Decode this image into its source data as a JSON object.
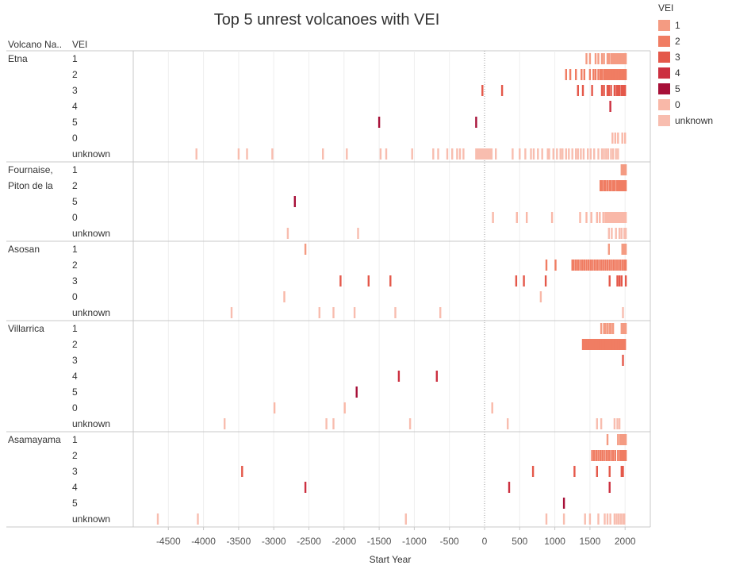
{
  "chart_data": {
    "type": "gantt",
    "title": "Top 5 unrest  volcanoes with VEI",
    "xlabel": "Start Year",
    "xlim": [
      -5000,
      2400
    ],
    "xticks": [
      -4500,
      -4000,
      -3500,
      -3000,
      -2500,
      -2000,
      -1500,
      -1000,
      -500,
      0,
      500,
      1000,
      1500,
      2000
    ],
    "column_headers": {
      "volcano": "Volcano Na..",
      "vei": "VEI"
    },
    "legend": {
      "title": "VEI",
      "position": "top-right",
      "items": [
        {
          "label": "1",
          "color": "#f49b82"
        },
        {
          "label": "2",
          "color": "#f07d63"
        },
        {
          "label": "3",
          "color": "#e4584a"
        },
        {
          "label": "4",
          "color": "#cc3040"
        },
        {
          "label": "5",
          "color": "#a71038"
        },
        {
          "label": "0",
          "color": "#f9b8a8"
        },
        {
          "label": "unknown",
          "color": "#f8bdaf"
        }
      ]
    },
    "volcanoes": [
      {
        "name": "Etna",
        "rows": [
          {
            "vei": "1",
            "events": [
              1450,
              1500,
              1580,
              1620,
              1670,
              1700,
              1750,
              1770,
              1800,
              1810,
              1820,
              1830,
              1840,
              1850,
              1860,
              1870,
              1880,
              1890,
              1900,
              1910,
              1920,
              1930,
              1940,
              1950,
              1960,
              1970,
              1980,
              1990,
              2000,
              2010
            ]
          },
          {
            "vei": "2",
            "events": [
              1160,
              1220,
              1300,
              1380,
              1420,
              1500,
              1550,
              1580,
              1620,
              1650,
              1670,
              1700,
              1720,
              1740,
              1760,
              1780,
              1790,
              1800,
              1810,
              1820,
              1830,
              1840,
              1850,
              1860,
              1870,
              1880,
              1890,
              1900,
              1910,
              1920,
              1930,
              1940,
              1950,
              1960,
              1970,
              1980,
              1990,
              2000,
              2010
            ]
          },
          {
            "vei": "3",
            "events": [
              -30,
              250,
              1330,
              1400,
              1530,
              1670,
              1700,
              1750,
              1770,
              1800,
              1850,
              1880,
              1900,
              1920,
              1950,
              1970,
              1990,
              2000
            ]
          },
          {
            "vei": "4",
            "events": [
              1790
            ]
          },
          {
            "vei": "5",
            "events": [
              -1500,
              -120
            ]
          },
          {
            "vei": "0",
            "events": [
              1820,
              1860,
              1900,
              1960,
              2000
            ]
          },
          {
            "vei": "unknown",
            "events": [
              -4100,
              -3500,
              -3380,
              -3020,
              -2300,
              -1960,
              -1480,
              -1400,
              -1030,
              -730,
              -660,
              -530,
              -460,
              -390,
              -350,
              -300,
              -120,
              -100,
              -80,
              -60,
              -40,
              -20,
              0,
              20,
              40,
              60,
              80,
              100,
              160,
              400,
              500,
              580,
              660,
              700,
              760,
              820,
              900,
              920,
              980,
              1030,
              1080,
              1110,
              1160,
              1200,
              1250,
              1300,
              1330,
              1370,
              1410,
              1470,
              1510,
              1560,
              1620,
              1670,
              1700,
              1730,
              1760,
              1800,
              1830,
              1870,
              1900
            ]
          }
        ]
      },
      {
        "name": "Fournaise, Piton de la",
        "rows": [
          {
            "vei": "1",
            "events": [
              1950,
              1960,
              1970,
              1980,
              1990,
              2000,
              2010
            ]
          },
          {
            "vei": "2",
            "events": [
              1650,
              1670,
              1700,
              1720,
              1750,
              1780,
              1800,
              1830,
              1850,
              1880,
              1900,
              1920,
              1940,
              1960,
              1980,
              2000,
              2010
            ]
          },
          {
            "vei": "5",
            "events": [
              -2700
            ]
          },
          {
            "vei": "0",
            "events": [
              120,
              460,
              600,
              960,
              1360,
              1450,
              1520,
              1600,
              1640,
              1690,
              1720,
              1740,
              1760,
              1780,
              1800,
              1820,
              1840,
              1860,
              1880,
              1900,
              1920,
              1940,
              1960,
              1980,
              2000,
              2010
            ]
          },
          {
            "vei": "unknown",
            "events": [
              -2800,
              -1800,
              1770,
              1810,
              1870,
              1920,
              1950,
              1990,
              2010
            ]
          }
        ]
      },
      {
        "name": "Asosan",
        "rows": [
          {
            "vei": "1",
            "events": [
              -2550,
              1770,
              1960,
              1980,
              2000,
              2010
            ]
          },
          {
            "vei": "2",
            "events": [
              880,
              1010,
              1250,
              1270,
              1300,
              1330,
              1360,
              1390,
              1420,
              1450,
              1480,
              1510,
              1540,
              1570,
              1600,
              1630,
              1660,
              1690,
              1720,
              1750,
              1780,
              1810,
              1840,
              1870,
              1900,
              1930,
              1960,
              1990,
              2010
            ]
          },
          {
            "vei": "3",
            "events": [
              -2050,
              -1650,
              -1340,
              450,
              560,
              870,
              1780,
              1890,
              1920,
              1950,
              2010
            ]
          },
          {
            "vei": "0",
            "events": [
              -2850,
              800
            ]
          },
          {
            "vei": "unknown",
            "events": [
              -3600,
              -2350,
              -2150,
              -1850,
              -1270,
              -630,
              1970
            ]
          }
        ]
      },
      {
        "name": "Villarrica",
        "rows": [
          {
            "vei": "1",
            "events": [
              1660,
              1700,
              1720,
              1750,
              1780,
              1800,
              1830,
              1950,
              1970,
              1990,
              2010
            ]
          },
          {
            "vei": "2",
            "events": [
              1400,
              1420,
              1440,
              1460,
              1480,
              1500,
              1520,
              1540,
              1560,
              1580,
              1600,
              1620,
              1640,
              1660,
              1680,
              1700,
              1720,
              1740,
              1760,
              1780,
              1800,
              1820,
              1840,
              1860,
              1880,
              1900,
              1920,
              1940,
              1960,
              1980,
              2000
            ]
          },
          {
            "vei": "3",
            "events": [
              1970
            ]
          },
          {
            "vei": "4",
            "events": [
              -1220,
              -680
            ]
          },
          {
            "vei": "5",
            "events": [
              -1820
            ]
          },
          {
            "vei": "0",
            "events": [
              -2990,
              -1990,
              110
            ]
          },
          {
            "vei": "unknown",
            "events": [
              -3700,
              -2250,
              -2150,
              -1060,
              330,
              1600,
              1660,
              1850,
              1890,
              1920
            ]
          }
        ]
      },
      {
        "name": "Asamayama",
        "rows": [
          {
            "vei": "1",
            "events": [
              1750,
              1900,
              1930,
              1950,
              1970,
              1990,
              2010
            ]
          },
          {
            "vei": "2",
            "events": [
              1530,
              1560,
              1590,
              1620,
              1650,
              1680,
              1710,
              1740,
              1770,
              1800,
              1830,
              1860,
              1900,
              1930,
              1950,
              1970,
              1990,
              2010
            ]
          },
          {
            "vei": "3",
            "events": [
              -3450,
              690,
              1280,
              1600,
              1780,
              1950,
              1970
            ]
          },
          {
            "vei": "4",
            "events": [
              -2550,
              350,
              1780
            ]
          },
          {
            "vei": "5",
            "events": [
              1130
            ]
          },
          {
            "vei": "unknown",
            "events": [
              -4650,
              -4080,
              -1120,
              880,
              1130,
              1430,
              1500,
              1620,
              1710,
              1750,
              1790,
              1850,
              1880,
              1910,
              1940,
              1970,
              1990
            ]
          }
        ]
      }
    ]
  }
}
